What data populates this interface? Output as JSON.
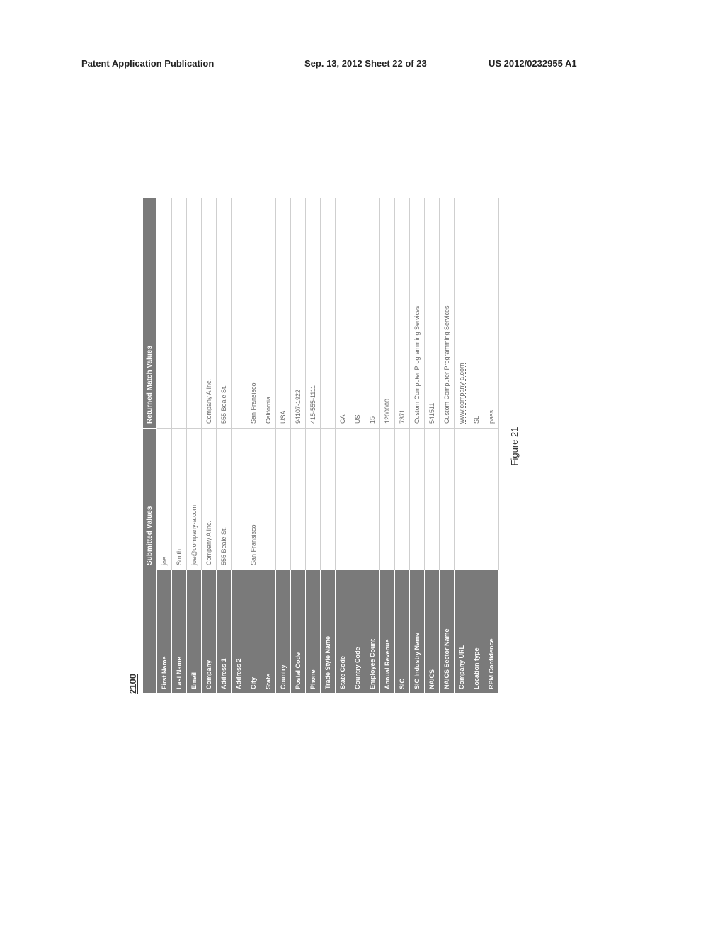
{
  "header": {
    "left": "Patent Application Publication",
    "mid": "Sep. 13, 2012  Sheet 22 of 23",
    "right": "US 2012/0232955 A1"
  },
  "figure_number": "2100",
  "figure_caption": "Figure 21",
  "table": {
    "headers": [
      "",
      "Submitted Values",
      "Returned Match Values"
    ],
    "label_bg": "#7a7a7a",
    "label_fg": "#ffffff",
    "value_fg": "#6a6a6a",
    "border_color": "#cfcfcf",
    "rows": [
      {
        "label": "First Name",
        "submitted": "joe",
        "matched": ""
      },
      {
        "label": "Last Name",
        "submitted": "Smith",
        "matched": ""
      },
      {
        "label": "Email",
        "submitted": "joe@company-a.com",
        "matched": "",
        "submitted_link": true
      },
      {
        "label": "Company",
        "submitted": "Company A Inc.",
        "matched": "Company A Inc."
      },
      {
        "label": "Address 1",
        "submitted": "555 Beale St.",
        "matched": "555 Beale St."
      },
      {
        "label": "Address 2",
        "submitted": "",
        "matched": ""
      },
      {
        "label": "City",
        "submitted": "San Fransisco",
        "matched": "San Fransisco"
      },
      {
        "label": "State",
        "submitted": "",
        "matched": "California"
      },
      {
        "label": "Country",
        "submitted": "",
        "matched": "USA"
      },
      {
        "label": "Postal Code",
        "submitted": "",
        "matched": "94107-1922"
      },
      {
        "label": "Phone",
        "submitted": "",
        "matched": "415-555-1111"
      },
      {
        "label": "Trade Style Name",
        "submitted": "",
        "matched": ""
      },
      {
        "label": "State Code",
        "submitted": "",
        "matched": "CA"
      },
      {
        "label": "Country Code",
        "submitted": "",
        "matched": "US"
      },
      {
        "label": "Employee Count",
        "submitted": "",
        "matched": "15"
      },
      {
        "label": "Annual Revenue",
        "submitted": "",
        "matched": "1200000"
      },
      {
        "label": "SIC",
        "submitted": "",
        "matched": "7371"
      },
      {
        "label": "SIC Industry Name",
        "submitted": "",
        "matched": "Custom Computer Programming Services"
      },
      {
        "label": "NAICS",
        "submitted": "",
        "matched": "541511"
      },
      {
        "label": "NAICS Sector Name",
        "submitted": "",
        "matched": "Custom Computer Programming Services"
      },
      {
        "label": "Company URL",
        "submitted": "",
        "matched": "www.company-a.com",
        "matched_link": true
      },
      {
        "label": "Location type",
        "submitted": "",
        "matched": "SL"
      },
      {
        "label": "RPM Confidence",
        "submitted": "",
        "matched": "pass"
      }
    ]
  }
}
